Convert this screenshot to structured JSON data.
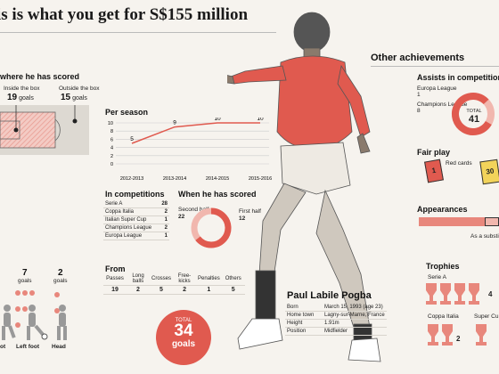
{
  "title": "is is what you get for S$155 million",
  "scored": {
    "heading": "where he has scored",
    "inside_label": "Inside the box",
    "inside_value": "19",
    "outside_label": "Outside the box",
    "outside_value": "15",
    "unit": "goals"
  },
  "per_season": {
    "heading": "Per season"
  },
  "chart_data": {
    "type": "line",
    "categories": [
      "2012-2013",
      "2013-2014",
      "2014-2015",
      "2015-2016"
    ],
    "values": [
      5,
      9,
      10,
      10
    ],
    "ylim": [
      0,
      10
    ],
    "yticks": [
      "0",
      "2",
      "4",
      "6",
      "8",
      "10"
    ]
  },
  "competitions": {
    "heading": "In competitions",
    "rows": [
      {
        "name": "Serie A",
        "value": "28"
      },
      {
        "name": "Coppa Italia",
        "value": "2"
      },
      {
        "name": "Italian Super Cup",
        "value": "1"
      },
      {
        "name": "Champions League",
        "value": "2"
      },
      {
        "name": "Europa League",
        "value": "1"
      }
    ]
  },
  "when_scored": {
    "heading": "When he has scored",
    "second_half_label": "Second half",
    "second_half_value": "22",
    "first_half_label": "First half",
    "first_half_value": "12"
  },
  "from": {
    "heading": "From",
    "headers": [
      "Passes",
      "Long balls",
      "Crosses",
      "Free-kicks",
      "Penalties",
      "Others"
    ],
    "values": [
      "19",
      "2",
      "5",
      "2",
      "1",
      "5"
    ]
  },
  "total": {
    "label": "TOTAL",
    "value": "34",
    "unit": "goals"
  },
  "body_parts": {
    "left_value": "7",
    "head_value": "2",
    "unit": "goals",
    "labels": [
      "ot",
      "Left foot",
      "Head"
    ]
  },
  "profile": {
    "name": "Paul Labile Pogba",
    "rows": [
      {
        "label": "Born",
        "value": "March 15, 1993 (age 23)"
      },
      {
        "label": "Home town",
        "value": "Lagny-sur-Marne, France"
      },
      {
        "label": "Height",
        "value": "1.91m"
      },
      {
        "label": "Position",
        "value": "Midfielder"
      }
    ]
  },
  "other": {
    "heading": "Other achievements",
    "assists_heading": "Assists in competitions",
    "europa_label": "Europa League",
    "europa_value": "1",
    "champions_label": "Champions League",
    "champions_value": "8",
    "total_label": "TOTAL",
    "total_value": "41",
    "fairplay_heading": "Fair play",
    "red_value": "1",
    "red_label": "Red cards",
    "yellow_value": "30",
    "appearances_heading": "Appearances",
    "substitute_label": "As a substi",
    "trophies_heading": "Trophies",
    "seriea_label": "Serie A",
    "seriea_value": "4",
    "coppa_label": "Coppa Italia",
    "coppa_value": "2",
    "supercup_label": "Super Cu"
  },
  "colors": {
    "accent": "#e05a4f",
    "light": "#f1b7ae",
    "yellow": "#f2d35a"
  }
}
